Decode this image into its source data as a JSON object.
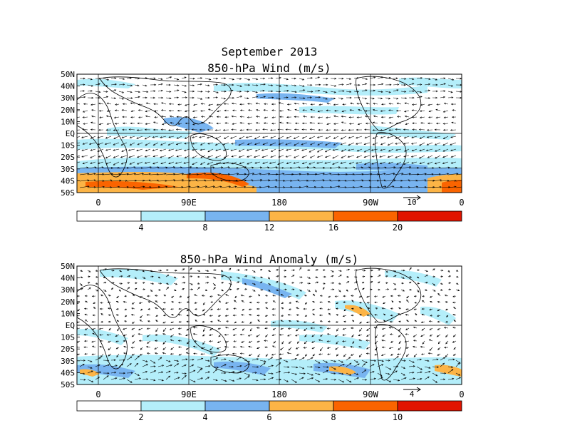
{
  "figure": {
    "title": "September 2013"
  },
  "colors": {
    "shade_bins": [
      "#ffffff",
      "#b4eefa",
      "#78b4f0",
      "#fcb446",
      "#fa6400",
      "#e11400"
    ],
    "land_outline": "#000000",
    "grid": "#000000"
  },
  "panels": [
    {
      "id": "wind",
      "title": "850-hPa Wind (m/s)",
      "lat_labels": [
        "50N",
        "40N",
        "30N",
        "20N",
        "10N",
        "EQ",
        "10S",
        "20S",
        "30S",
        "40S",
        "50S"
      ],
      "lon_labels": [
        "0",
        "90E",
        "180",
        "90W",
        "0"
      ],
      "reference_vector": "10",
      "colorbar": {
        "levels": [
          "4",
          "8",
          "12",
          "16",
          "20"
        ],
        "colors": [
          "#ffffff",
          "#b4eefa",
          "#78b4f0",
          "#fcb446",
          "#fa6400",
          "#e11400"
        ]
      }
    },
    {
      "id": "anomaly",
      "title": "850-hPa Wind Anomaly (m/s)",
      "lat_labels": [
        "50N",
        "40N",
        "30N",
        "20N",
        "10N",
        "EQ",
        "10S",
        "20S",
        "30S",
        "40S",
        "50S"
      ],
      "lon_labels": [
        "0",
        "90E",
        "180",
        "90W",
        "0"
      ],
      "reference_vector": "4",
      "colorbar": {
        "levels": [
          "2",
          "4",
          "6",
          "8",
          "10"
        ],
        "colors": [
          "#ffffff",
          "#b4eefa",
          "#78b4f0",
          "#fcb446",
          "#fa6400",
          "#e11400"
        ]
      }
    }
  ]
}
